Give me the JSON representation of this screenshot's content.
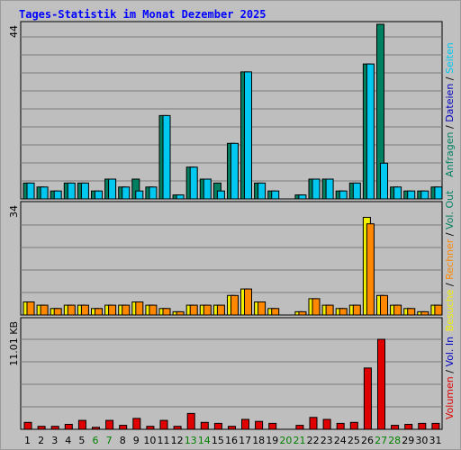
{
  "colors": {
    "background": "#c0c0c0",
    "plot": "#bebebe",
    "title": "#0000ff",
    "hits": "#008060",
    "files": "#00c8f0",
    "pages": "#00e0ff",
    "visits": "#f0f000",
    "sites": "#ff8800",
    "volume": "#e00000",
    "weekend": "#008000"
  },
  "chart_data": {
    "type": "bar",
    "title": "Tages-Statistik im Monat Dezember 2025",
    "categories": [
      "1",
      "2",
      "3",
      "4",
      "5",
      "6",
      "7",
      "8",
      "9",
      "10",
      "11",
      "12",
      "13",
      "14",
      "15",
      "16",
      "17",
      "18",
      "19",
      "20",
      "21",
      "22",
      "23",
      "24",
      "25",
      "26",
      "27",
      "28",
      "29",
      "30",
      "31"
    ],
    "weekend_days": [
      "6",
      "7",
      "13",
      "14",
      "20",
      "21",
      "27",
      "28"
    ],
    "panels": [
      {
        "name": "top",
        "max_label": "44",
        "ylim": [
          0,
          44
        ],
        "series": [
          {
            "name": "Anfragen",
            "color": "#008060",
            "values": [
              4,
              3,
              2,
              4,
              4,
              2,
              5,
              3,
              5,
              3,
              21,
              1,
              8,
              5,
              4,
              14,
              32,
              4,
              2,
              0,
              1,
              5,
              5,
              2,
              4,
              34,
              44,
              3,
              2,
              2,
              3
            ]
          },
          {
            "name": "Dateien",
            "color": "#00c8f0",
            "values": [
              4,
              3,
              2,
              4,
              4,
              2,
              5,
              3,
              2,
              3,
              21,
              1,
              8,
              5,
              2,
              14,
              32,
              4,
              2,
              0,
              1,
              5,
              5,
              2,
              4,
              34,
              9,
              3,
              2,
              2,
              3
            ]
          }
        ],
        "legend": [
          {
            "text": "Anfragen",
            "color": "#008060"
          },
          {
            "text": " / ",
            "color": "#000000"
          },
          {
            "text": "Dateien",
            "color": "#0000c0"
          },
          {
            "text": " / ",
            "color": "#000000"
          },
          {
            "text": "Seiten",
            "color": "#00c8f0"
          }
        ]
      },
      {
        "name": "middle",
        "max_label": "34",
        "ylim": [
          0,
          34
        ],
        "series": [
          {
            "name": "Besuche",
            "color": "#f0f000",
            "values": [
              4,
              3,
              2,
              3,
              3,
              2,
              3,
              3,
              4,
              3,
              2,
              1,
              3,
              3,
              3,
              6,
              8,
              4,
              2,
              0,
              1,
              5,
              3,
              2,
              3,
              30,
              6,
              3,
              2,
              1,
              3
            ]
          },
          {
            "name": "Rechner",
            "color": "#ff8800",
            "values": [
              4,
              3,
              2,
              3,
              3,
              2,
              3,
              3,
              4,
              3,
              2,
              1,
              3,
              3,
              3,
              6,
              8,
              4,
              2,
              0,
              1,
              5,
              3,
              2,
              3,
              28,
              6,
              3,
              2,
              1,
              3
            ]
          }
        ],
        "legend": [
          {
            "text": "Besuche",
            "color": "#f0f000"
          },
          {
            "text": " / ",
            "color": "#000000"
          },
          {
            "text": "Rechner",
            "color": "#ff8800"
          },
          {
            "text": " / ",
            "color": "#000000"
          },
          {
            "text": "Vol. Out",
            "color": "#008060"
          }
        ]
      },
      {
        "name": "bottom",
        "max_label": "11.01 KB",
        "ylim": [
          0,
          11.01
        ],
        "series": [
          {
            "name": "Volumen",
            "color": "#e00000",
            "values": [
              0.7,
              0.3,
              0.3,
              0.5,
              0.9,
              0.2,
              0.9,
              0.4,
              1.1,
              0.3,
              0.9,
              0.3,
              1.6,
              0.7,
              0.6,
              0.3,
              1.0,
              0.8,
              0.6,
              0,
              0.4,
              1.2,
              1.0,
              0.6,
              0.7,
              6.2,
              9.1,
              0.4,
              0.5,
              0.6,
              0.6
            ]
          }
        ],
        "legend": [
          {
            "text": "Volumen",
            "color": "#e00000"
          },
          {
            "text": " / ",
            "color": "#000000"
          },
          {
            "text": "Vol. In",
            "color": "#0000c0"
          }
        ]
      }
    ]
  }
}
